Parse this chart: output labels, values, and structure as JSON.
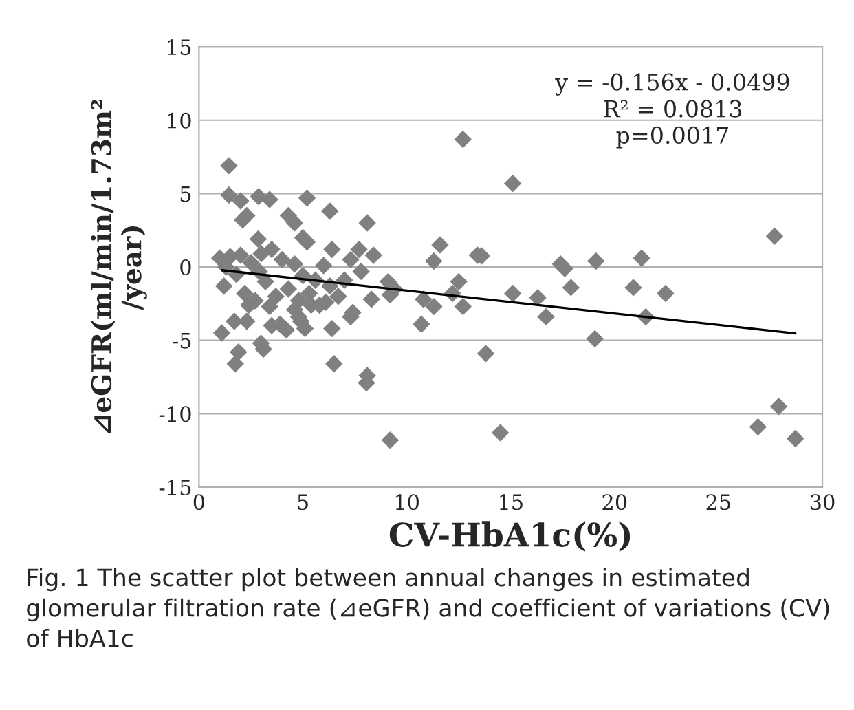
{
  "chart_data": {
    "type": "scatter",
    "xlabel": "CV-HbA1c(%)",
    "ylabel": "⊿eGFR(ml/min/1.73m²\n/year)",
    "xlim": [
      0,
      30
    ],
    "xticks": [
      0,
      5,
      10,
      15,
      20,
      25,
      30
    ],
    "ylim": [
      -15,
      15
    ],
    "yticks": [
      -15,
      -10,
      -5,
      0,
      5,
      10,
      15
    ],
    "grid": "y",
    "series": [
      {
        "marker": "diamond",
        "color": "#808080",
        "x": [
          1.44,
          12.7,
          1.44,
          2.0,
          2.87,
          3.4,
          5.2,
          6.3,
          8.1,
          2.1,
          2.3,
          2.85,
          4.3,
          4.6,
          5.0,
          5.2,
          6.4,
          11.6,
          11.3,
          13.4,
          7.7,
          7.3,
          8.4,
          7.8,
          12.5,
          12.7,
          10.8,
          11.3,
          12.2,
          1.1,
          1.7,
          2.3,
          1.9,
          1.75,
          2.98,
          3.1,
          3.5,
          3.9,
          4.2,
          4.9,
          5.1,
          6.4,
          6.5,
          8.06,
          8.1,
          9.2,
          10.7,
          13.8,
          7.4,
          7.3,
          8.3,
          9.2,
          9.1,
          9.4,
          6.1,
          5.4,
          4.6,
          4.8,
          1.0,
          1.2,
          1.5,
          1.8,
          2.0,
          2.2,
          2.5,
          2.7,
          3.0,
          3.2,
          3.5,
          3.7,
          4.0,
          4.3,
          4.6,
          5.0,
          5.3,
          5.6,
          6.0,
          6.3,
          6.7,
          7.0,
          2.4,
          3.4,
          1.3,
          4.8,
          5.8,
          2.9,
          15.1,
          27.7,
          13.6,
          17.4,
          17.6,
          19.1,
          21.3,
          15.1,
          16.3,
          16.7,
          17.9,
          19.05,
          20.9,
          21.5,
          22.45,
          14.5,
          26.9,
          27.9,
          28.7
        ],
        "values": [
          6.9,
          8.7,
          4.9,
          4.5,
          4.8,
          4.6,
          4.7,
          3.8,
          3.0,
          3.2,
          3.5,
          1.9,
          3.5,
          3.0,
          2.0,
          1.7,
          1.2,
          1.5,
          0.4,
          0.8,
          1.2,
          0.5,
          0.8,
          -0.3,
          -1.0,
          -2.7,
          -2.2,
          -2.7,
          -1.8,
          -4.5,
          -3.7,
          -3.7,
          -5.8,
          -6.6,
          -5.2,
          -5.6,
          -4.0,
          -3.9,
          -4.3,
          -3.7,
          -4.2,
          -4.2,
          -6.6,
          -7.9,
          -7.4,
          -11.8,
          -3.9,
          -5.9,
          -3.1,
          -3.4,
          -2.2,
          -1.9,
          -1.0,
          -1.5,
          -2.4,
          -2.6,
          -2.9,
          -3.4,
          0.6,
          -1.3,
          0.7,
          -0.5,
          0.8,
          -1.8,
          0.3,
          -2.3,
          0.9,
          -1.0,
          1.2,
          -2.0,
          0.5,
          -1.5,
          0.2,
          -0.6,
          -1.8,
          -0.9,
          0.1,
          -1.3,
          -2.0,
          -0.9,
          -2.6,
          -2.7,
          0.0,
          -2.3,
          -2.6,
          -0.3,
          5.7,
          2.1,
          0.75,
          0.2,
          -0.1,
          0.4,
          0.6,
          -1.8,
          -2.1,
          -3.4,
          -1.4,
          -4.9,
          -1.4,
          -3.4,
          -1.8,
          -11.3,
          -10.9,
          -9.5,
          -11.7
        ]
      },
      {
        "type": "line",
        "color": "#000000",
        "x": [
          1.1,
          28.7
        ],
        "values": [
          -0.22,
          -4.53
        ]
      }
    ],
    "annotations": [
      "y = -0.156x - 0.0499",
      "R² = 0.0813",
      "p=0.0017",
      "Fig. 1 The scatter plot between annual changes in estimated glomerular filtration rate (⊿eGFR) and coefficient of variations (CV) of HbA1c"
    ]
  }
}
